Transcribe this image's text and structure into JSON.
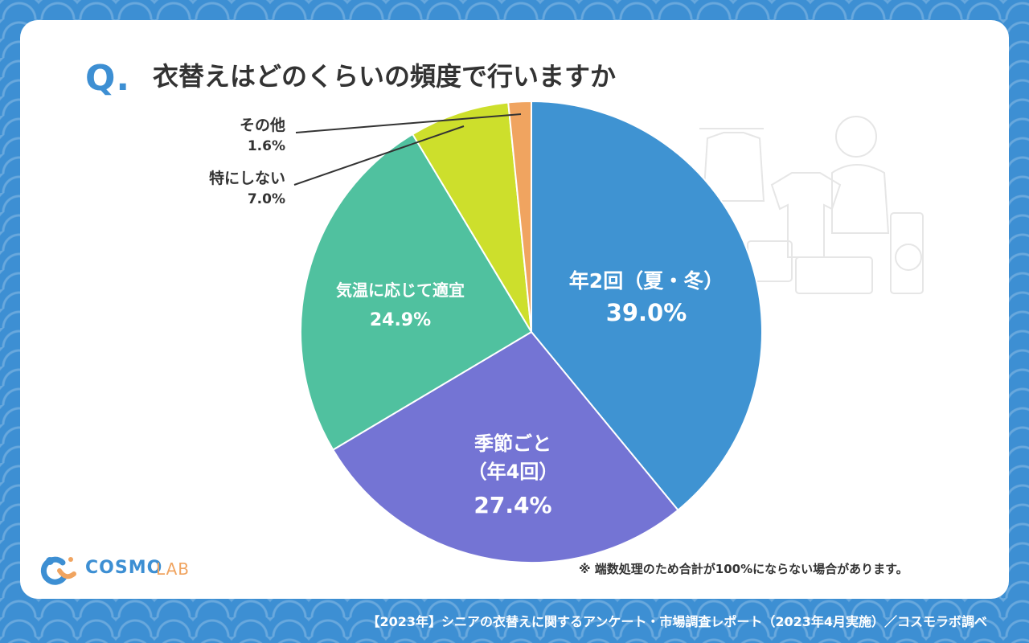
{
  "header": {
    "q_mark": "Q.",
    "title": "衣替えはどのくらいの頻度で行いますか"
  },
  "chart_data": {
    "type": "pie",
    "slices": [
      {
        "label": "年2回（夏・冬）",
        "value": 39.0,
        "value_label": "39.0%",
        "color": "#3f93d2"
      },
      {
        "label": "季節ごと（年4回）",
        "value": 27.4,
        "value_label": "27.4%",
        "color": "#7474d4"
      },
      {
        "label": "気温に応じて適宜",
        "value": 24.9,
        "value_label": "24.9%",
        "color": "#50c19f"
      },
      {
        "label": "特にしない",
        "value": 7.0,
        "value_label": "7.0%",
        "color": "#cddf2c"
      },
      {
        "label": "その他",
        "value": 1.6,
        "value_label": "1.6%",
        "color": "#f0a460"
      }
    ]
  },
  "labels": {
    "slice0": {
      "name": "年2回（夏・冬）",
      "value": "39.0%"
    },
    "slice1": {
      "name1": "季節ごと",
      "name2": "（年4回）",
      "value": "27.4%"
    },
    "slice2": {
      "name": "気温に応じて適宜",
      "value": "24.9%"
    },
    "slice3": {
      "name": "特にしない",
      "value": "7.0%"
    },
    "slice4": {
      "name": "その他",
      "value": "1.6%"
    }
  },
  "note": "※ 端数処理のため合計が100%にならない場合があります。",
  "logo": {
    "text1": "COSMO",
    "text2": "LAB"
  },
  "footer": "【2023年】シニアの衣替えに関するアンケート・市場調査レポート（2023年4月実施）／コスモラボ調べ"
}
